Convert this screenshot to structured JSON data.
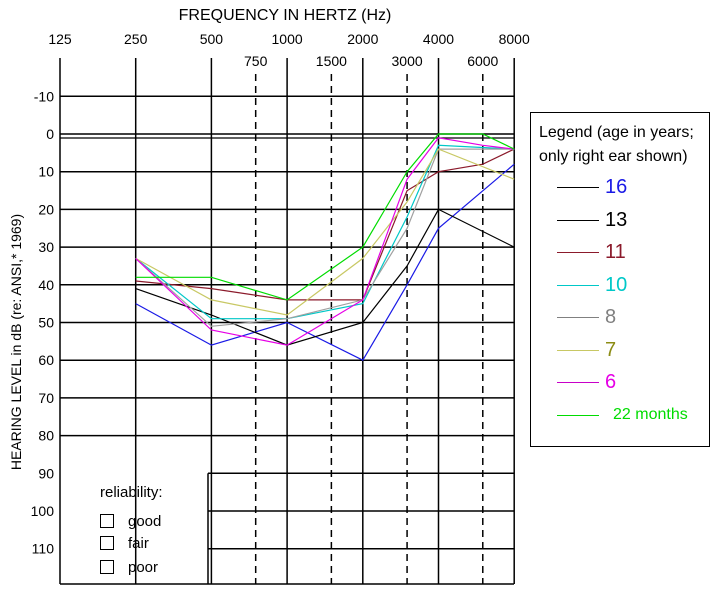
{
  "chart_data": {
    "type": "line",
    "title": "FREQUENCY IN HERTZ (Hz)",
    "ylabel": "HEARING LEVEL in dB (re: ANSI,* 1969)",
    "x_top_ticks": [
      "125",
      "250",
      "500",
      "1000",
      "2000",
      "4000",
      "8000"
    ],
    "x_mid_ticks": [
      "750",
      "1500",
      "3000",
      "6000"
    ],
    "x": [
      250,
      500,
      750,
      1000,
      1500,
      2000,
      3000,
      4000,
      6000,
      8000
    ],
    "y_ticks": [
      "-10",
      "0",
      "10",
      "20",
      "30",
      "40",
      "50",
      "60",
      "70",
      "80",
      "90",
      "100",
      "110"
    ],
    "ylim": [
      -10,
      120
    ],
    "y_inverted": true,
    "grid": true,
    "legend_placement": "right",
    "series": [
      {
        "name": "16",
        "color": "#1a1ae6",
        "points": [
          [
            250,
            45
          ],
          [
            500,
            56
          ],
          [
            1000,
            50
          ],
          [
            2000,
            60
          ],
          [
            3000,
            40
          ],
          [
            4000,
            25
          ],
          [
            8000,
            8
          ]
        ]
      },
      {
        "name": "13",
        "color": "#000000",
        "points": [
          [
            250,
            41
          ],
          [
            500,
            48
          ],
          [
            1000,
            56
          ],
          [
            2000,
            50
          ],
          [
            3000,
            35
          ],
          [
            4000,
            20
          ],
          [
            8000,
            30
          ]
        ]
      },
      {
        "name": "11",
        "color": "#8b1a2b",
        "points": [
          [
            250,
            39
          ],
          [
            500,
            41
          ],
          [
            1000,
            44
          ],
          [
            2000,
            44
          ],
          [
            3000,
            15
          ],
          [
            4000,
            10
          ],
          [
            6000,
            8
          ],
          [
            8000,
            4
          ]
        ]
      },
      {
        "name": "10",
        "color": "#00c8c8",
        "points": [
          [
            250,
            33
          ],
          [
            500,
            49
          ],
          [
            1000,
            49
          ],
          [
            2000,
            45
          ],
          [
            3000,
            22
          ],
          [
            4000,
            3
          ],
          [
            8000,
            4
          ]
        ]
      },
      {
        "name": "8",
        "color": "#a0a0a0",
        "points": [
          [
            250,
            33
          ],
          [
            500,
            51
          ],
          [
            1000,
            49
          ],
          [
            2000,
            44
          ],
          [
            3000,
            25
          ],
          [
            4000,
            4
          ],
          [
            8000,
            4
          ]
        ]
      },
      {
        "name": "7",
        "color": "#c8c864",
        "points": [
          [
            250,
            33
          ],
          [
            500,
            44
          ],
          [
            1000,
            48
          ],
          [
            2000,
            33
          ],
          [
            3000,
            18
          ],
          [
            4000,
            4
          ],
          [
            8000,
            12
          ]
        ]
      },
      {
        "name": "6",
        "color": "#e600e6",
        "points": [
          [
            250,
            33
          ],
          [
            500,
            52
          ],
          [
            1000,
            56
          ],
          [
            2000,
            44
          ],
          [
            3000,
            12
          ],
          [
            4000,
            1
          ],
          [
            6000,
            3
          ],
          [
            8000,
            4
          ]
        ]
      },
      {
        "name": "22 months",
        "color": "#00dc00",
        "points": [
          [
            250,
            38
          ],
          [
            500,
            38
          ],
          [
            1000,
            44
          ],
          [
            2000,
            30
          ],
          [
            3000,
            10
          ],
          [
            4000,
            0
          ],
          [
            6000,
            0
          ],
          [
            8000,
            4
          ]
        ]
      }
    ]
  },
  "legend": {
    "title": "Legend (age in years; only right ear shown)",
    "items": [
      {
        "label": "16",
        "line_color": "#000000",
        "text_color": "#1a1ae6"
      },
      {
        "label": "13",
        "line_color": "#000000",
        "text_color": "#000000"
      },
      {
        "label": "11",
        "line_color": "#8b1a2b",
        "text_color": "#8b1a2b"
      },
      {
        "label": "10",
        "line_color": "#00c8c8",
        "text_color": "#00c8c8"
      },
      {
        "label": "8",
        "line_color": "#808080",
        "text_color": "#808080"
      },
      {
        "label": "7",
        "line_color": "#c8c864",
        "text_color": "#8c8c14"
      },
      {
        "label": "6",
        "line_color": "#c800c8",
        "text_color": "#e600e6"
      },
      {
        "label": "22 months",
        "line_color": "#00dc00",
        "text_color": "#00dc00"
      }
    ]
  },
  "reliability": {
    "title": "reliability:",
    "options": [
      "good",
      "fair",
      "poor"
    ]
  }
}
